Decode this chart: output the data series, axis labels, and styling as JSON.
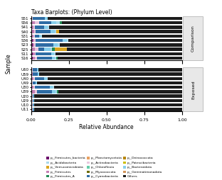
{
  "title": "Taxa Barplots: (Phylum Level)",
  "xlabel": "Relative Abundance",
  "ylabel": "Sample",
  "group_labels": [
    "Comparison",
    "Exposed"
  ],
  "samples_comparison": [
    "S51",
    "S56",
    "S41",
    "S40",
    "S31",
    "S36",
    "S23",
    "S25",
    "S11",
    "S16"
  ],
  "samples_exposed": [
    "U60",
    "U59",
    "U40",
    "U49",
    "U30",
    "U39",
    "U20",
    "U29",
    "U10",
    "U11"
  ],
  "phyla": [
    "p__Firmicutes_bacteria",
    "p__Firmicutes",
    "p__Actinobacteria",
    "p__Cyanobacteria",
    "p__Bacteroidota",
    "p__Acidobacteria",
    "p__Firmicutes_A",
    "p__Chloroflexia",
    "p__Deinococcota",
    "p__Gemmatimonadota",
    "p__Verrucomicrobiota",
    "p__Planctomycetota",
    "p__Myxococcota",
    "p__Patescibacteria",
    "Others"
  ],
  "colors": [
    "#6B0E6B",
    "#C47FB5",
    "#E8C8DF",
    "#2E6CA4",
    "#87CEEB",
    "#A8D8EA",
    "#228B55",
    "#66CDAA",
    "#B8860B",
    "#D2955A",
    "#DAA520",
    "#E8A060",
    "#6B6B00",
    "#CDBE00",
    "#1C1C1C"
  ],
  "data_comparison": [
    [
      0.003,
      0.005,
      0.005,
      0.08,
      0.015,
      0.003,
      0.0,
      0.0,
      0.0,
      0.0,
      0.0,
      0.0,
      0.0,
      0.0,
      0.889
    ],
    [
      0.008,
      0.015,
      0.03,
      0.08,
      0.035,
      0.02,
      0.015,
      0.0,
      0.0,
      0.0,
      0.0,
      0.0,
      0.0,
      0.0,
      0.797
    ],
    [
      0.008,
      0.008,
      0.01,
      0.06,
      0.025,
      0.008,
      0.0,
      0.0,
      0.0,
      0.0,
      0.0,
      0.0,
      0.0,
      0.0,
      0.881
    ],
    [
      0.008,
      0.012,
      0.008,
      0.1,
      0.03,
      0.008,
      0.0,
      0.0,
      0.0,
      0.0,
      0.02,
      0.0,
      0.0,
      0.0,
      0.814
    ],
    [
      0.008,
      0.008,
      0.008,
      0.03,
      0.01,
      0.008,
      0.0,
      0.0,
      0.0,
      0.0,
      0.0,
      0.0,
      0.0,
      0.0,
      0.928
    ],
    [
      0.012,
      0.008,
      0.008,
      0.18,
      0.03,
      0.008,
      0.0,
      0.0,
      0.0,
      0.0,
      0.0,
      0.0,
      0.0,
      0.0,
      0.754
    ],
    [
      0.012,
      0.008,
      0.008,
      0.12,
      0.03,
      0.012,
      0.0,
      0.0,
      0.0,
      0.0,
      0.0,
      0.0,
      0.0,
      0.0,
      0.81
    ],
    [
      0.008,
      0.015,
      0.025,
      0.04,
      0.04,
      0.008,
      0.02,
      0.0,
      0.0,
      0.0,
      0.08,
      0.0,
      0.0,
      0.0,
      0.764
    ],
    [
      0.012,
      0.012,
      0.008,
      0.1,
      0.02,
      0.008,
      0.0,
      0.0,
      0.0,
      0.0,
      0.0,
      0.0,
      0.0,
      0.0,
      0.84
    ],
    [
      0.012,
      0.015,
      0.012,
      0.1,
      0.02,
      0.008,
      0.008,
      0.0,
      0.0,
      0.0,
      0.0,
      0.0,
      0.0,
      0.0,
      0.825
    ]
  ],
  "data_exposed": [
    [
      0.003,
      0.003,
      0.003,
      0.03,
      0.01,
      0.0,
      0.0,
      0.0,
      0.0,
      0.0,
      0.0,
      0.0,
      0.0,
      0.0,
      0.951
    ],
    [
      0.003,
      0.006,
      0.003,
      0.03,
      0.01,
      0.0,
      0.0,
      0.0,
      0.0,
      0.0,
      0.0,
      0.0,
      0.0,
      0.0,
      0.948
    ],
    [
      0.008,
      0.008,
      0.008,
      0.06,
      0.02,
      0.008,
      0.0,
      0.0,
      0.0,
      0.0,
      0.0,
      0.0,
      0.0,
      0.0,
      0.888
    ],
    [
      0.003,
      0.003,
      0.003,
      0.02,
      0.008,
      0.0,
      0.0,
      0.0,
      0.0,
      0.0,
      0.0,
      0.0,
      0.0,
      0.0,
      0.963
    ],
    [
      0.008,
      0.008,
      0.008,
      0.1,
      0.02,
      0.008,
      0.0,
      0.0,
      0.0,
      0.0,
      0.0,
      0.0,
      0.0,
      0.0,
      0.848
    ],
    [
      0.008,
      0.015,
      0.015,
      0.1,
      0.025,
      0.008,
      0.008,
      0.0,
      0.0,
      0.0,
      0.0,
      0.0,
      0.0,
      0.0,
      0.821
    ],
    [
      0.003,
      0.003,
      0.003,
      0.008,
      0.003,
      0.0,
      0.0,
      0.0,
      0.0,
      0.0,
      0.0,
      0.0,
      0.0,
      0.0,
      0.98
    ],
    [
      0.003,
      0.003,
      0.003,
      0.008,
      0.003,
      0.0,
      0.0,
      0.0,
      0.0,
      0.0,
      0.0,
      0.0,
      0.0,
      0.0,
      0.98
    ],
    [
      0.003,
      0.003,
      0.003,
      0.008,
      0.003,
      0.0,
      0.0,
      0.0,
      0.0,
      0.0,
      0.0,
      0.0,
      0.0,
      0.0,
      0.98
    ],
    [
      0.003,
      0.003,
      0.003,
      0.008,
      0.003,
      0.0,
      0.0,
      0.0,
      0.0,
      0.0,
      0.0,
      0.0,
      0.0,
      0.0,
      0.98
    ]
  ],
  "legend_labels": [
    "p__Firmicutes_bacteria",
    "p__Acidobacteria",
    "p__Verrucomicrobiota",
    "p__Firmicutes",
    "p__Firmicutes_A",
    "p__Planctomycetota",
    "p__Actinobacteria",
    "p__Chloroflexia",
    "p__Myxococcota",
    "p__Cyanobacteria",
    "p__Deinococcota",
    "p__Patescibacteria",
    "p__Bacteroidota",
    "p__Gemmatimonadota",
    "Others"
  ],
  "legend_colors": [
    "#6B0E6B",
    "#A8D8EA",
    "#DAA520",
    "#C47FB5",
    "#228B55",
    "#E8A060",
    "#E8C8DF",
    "#66CDAA",
    "#6B6B00",
    "#2E6CA4",
    "#B8860B",
    "#CDBE00",
    "#87CEEB",
    "#D2955A",
    "#1C1C1C"
  ],
  "bar_height": 0.72,
  "xlim": [
    0.0,
    1.0
  ],
  "xticks": [
    0.0,
    0.25,
    0.5,
    0.75,
    1.0
  ],
  "xtick_labels": [
    "0.00",
    "0.25",
    "0.50",
    "0.75",
    "1.00"
  ]
}
